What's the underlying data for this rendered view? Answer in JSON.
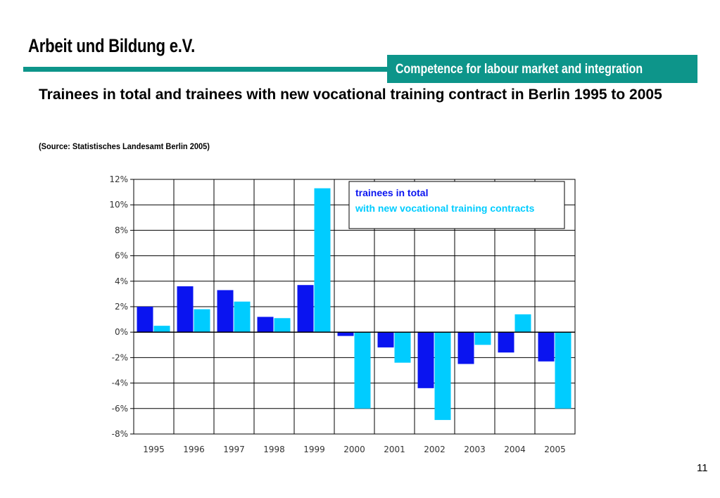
{
  "header": {
    "org_title": "Arbeit und Bildung e.V.",
    "tagline": "Competence for labour market and integration"
  },
  "slide": {
    "title": "Trainees in total and trainees with new vocational training contract in Berlin 1995 to 2005",
    "source": "(Source: Statistisches Landesamt Berlin 2005)",
    "page_number": "11"
  },
  "colors": {
    "accent": "#0d958a",
    "series_total": "#0a14f0",
    "series_new": "#00ccff"
  },
  "chart_data": {
    "type": "bar",
    "categories": [
      "1995",
      "1996",
      "1997",
      "1998",
      "1999",
      "2000",
      "2001",
      "2002",
      "2003",
      "2004",
      "2005"
    ],
    "series": [
      {
        "name": "trainees in total",
        "color": "#0a14f0",
        "values": [
          2.0,
          3.6,
          3.3,
          1.2,
          3.7,
          -0.3,
          -1.2,
          -4.4,
          -2.5,
          -1.6,
          -2.3
        ]
      },
      {
        "name": "with new vocational training contracts",
        "color": "#00ccff",
        "values": [
          0.5,
          1.8,
          2.4,
          1.1,
          11.3,
          -6.0,
          -2.4,
          -6.9,
          -1.0,
          1.4,
          -6.0
        ]
      }
    ],
    "ylim": [
      -8,
      12
    ],
    "yticks": [
      12,
      10,
      8,
      6,
      4,
      2,
      0,
      -2,
      -4,
      -6,
      -8
    ],
    "ytick_labels": [
      "12%",
      "10%",
      "8%",
      "6%",
      "4%",
      "2%",
      "0%",
      "-2%",
      "-4%",
      "-6%",
      "-8%"
    ],
    "grid": true,
    "legend_position": "top-right",
    "title": "",
    "xlabel": "",
    "ylabel": ""
  }
}
